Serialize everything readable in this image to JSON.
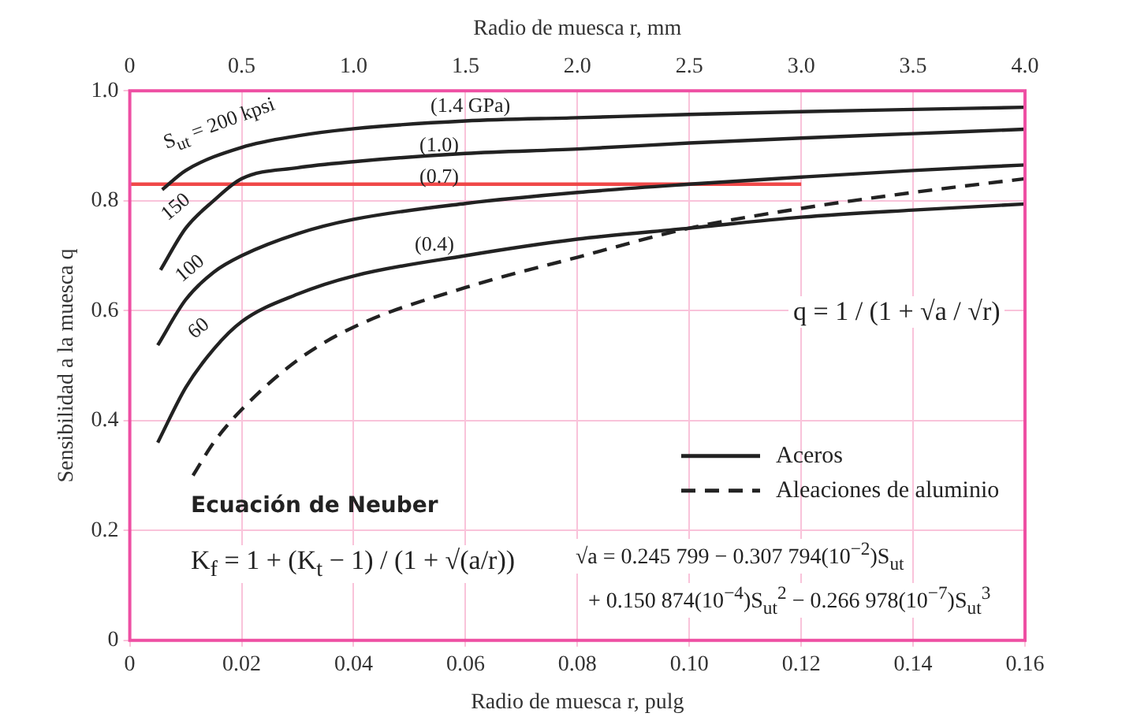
{
  "chart_data": {
    "type": "line",
    "xlabel": "Radio de muesca r, pulg",
    "x2label": "Radio de muesca r, mm",
    "ylabel": "Sensibilidad a la muesca q",
    "xlim": [
      0,
      0.16
    ],
    "xticks": [
      0,
      0.02,
      0.04,
      0.06,
      0.08,
      {
        "value": 0.1,
        "label": "0.10"
      },
      0.12,
      0.14,
      0.16
    ],
    "x2lim": [
      0,
      4.0
    ],
    "x2ticks": [
      0,
      0.5,
      {
        "value": 1,
        "label": "1.0"
      },
      1.5,
      {
        "value": 2,
        "label": "2.0"
      },
      2.5,
      {
        "value": 3,
        "label": "3.0"
      },
      3.5,
      {
        "value": 4,
        "label": "4.0"
      }
    ],
    "ylim": [
      0,
      1.0
    ],
    "yticks": [
      0,
      0.2,
      0.4,
      0.6,
      0.8,
      {
        "value": 1,
        "label": "1.0"
      }
    ],
    "grid": true,
    "legend": "bottom right",
    "marker": "none",
    "series": [
      {
        "name": "Aceros",
        "color": "#222222",
        "line_style": "solid",
        "x": [
          0.0058,
          0.01,
          0.02,
          0.03,
          0.04,
          0.06,
          0.08,
          0.1,
          0.12,
          0.14,
          0.16
        ],
        "values": [
          0.82,
          0.855,
          0.897,
          0.918,
          0.931,
          0.945,
          0.951,
          0.957,
          0.962,
          0.966,
          0.97
        ]
      },
      {
        "color": "#222222",
        "line_style": "solid",
        "x": [
          0.0055,
          0.01,
          0.015,
          0.02,
          0.03,
          0.04,
          0.06,
          0.08,
          0.1,
          0.12,
          0.14,
          0.16
        ],
        "values": [
          0.674,
          0.75,
          0.8,
          0.84,
          0.86,
          0.871,
          0.886,
          0.894,
          0.905,
          0.914,
          0.922,
          0.93
        ]
      },
      {
        "color": "#222222",
        "line_style": "solid",
        "x": [
          0.005,
          0.01,
          0.015,
          0.02,
          0.03,
          0.04,
          0.06,
          0.08,
          0.1,
          0.12,
          0.14,
          0.16
        ],
        "values": [
          0.537,
          0.62,
          0.67,
          0.7,
          0.74,
          0.766,
          0.795,
          0.815,
          0.83,
          0.843,
          0.855,
          0.865
        ]
      },
      {
        "color": "#222222",
        "line_style": "solid",
        "x": [
          0.005,
          0.01,
          0.015,
          0.02,
          0.03,
          0.04,
          0.06,
          0.08,
          0.1,
          0.12,
          0.14,
          0.16
        ],
        "values": [
          0.36,
          0.46,
          0.53,
          0.58,
          0.63,
          0.663,
          0.7,
          0.73,
          0.75,
          0.77,
          0.783,
          0.794
        ]
      },
      {
        "name": "Aleaciones de aluminio",
        "color": "#222222",
        "line_style": "dashed",
        "x": [
          0.0113,
          0.015,
          0.02,
          0.03,
          0.04,
          0.06,
          0.08,
          0.1,
          0.12,
          0.14,
          0.16
        ],
        "values": [
          0.3,
          0.36,
          0.42,
          0.51,
          0.57,
          0.642,
          0.697,
          0.75,
          0.786,
          0.815,
          0.84
        ]
      },
      {
        "color": "#f04848",
        "line_style": "solid",
        "x": [
          0,
          0.12
        ],
        "values": [
          0.83,
          0.83
        ]
      }
    ],
    "annotations": [
      "S$_{ut}$ = 200 kpsi",
      "(1.4 GPa)",
      "150",
      "(1.0)",
      "100",
      "(0.7)",
      "60",
      "(0.4)",
      "q = 1 / (1 + √a / √r)",
      "Ecuación de Neuber",
      "K$_{f}$ = 1 + (K$_{t}$ − 1) / (1 + √(a/r))",
      "√a = 0.245 799 − 0.307 794(10$^{−2}$)S$_{ut}$",
      "+ 0.150 874(10$^{−4}$)S$_{ut}$$^{2}$ − 0.266 978(10$^{−7}$)S$_{ut}$$^{3}$"
    ]
  }
}
